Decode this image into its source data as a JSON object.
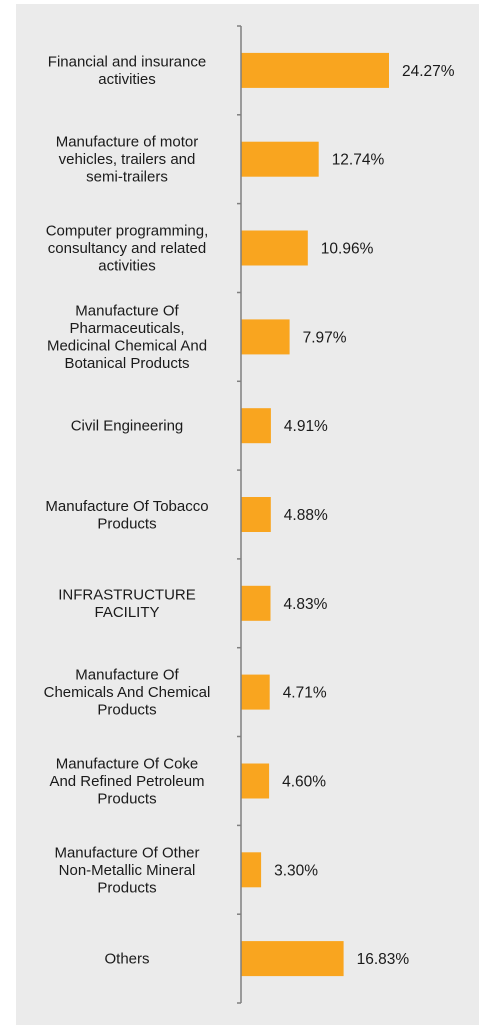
{
  "chart_data": {
    "type": "bar",
    "orientation": "horizontal",
    "categories": [
      [
        "Financial and insurance",
        "activities"
      ],
      [
        "Manufacture of motor",
        "vehicles, trailers and",
        "semi-trailers"
      ],
      [
        "Computer programming,",
        "consultancy and related",
        "activities"
      ],
      [
        "Manufacture Of",
        "Pharmaceuticals,",
        "Medicinal Chemical And",
        "Botanical Products"
      ],
      [
        "Civil Engineering"
      ],
      [
        "Manufacture Of Tobacco",
        "Products"
      ],
      [
        "INFRASTRUCTURE",
        "FACILITY"
      ],
      [
        "Manufacture Of",
        "Chemicals And Chemical",
        "Products"
      ],
      [
        "Manufacture Of Coke",
        "And Refined Petroleum",
        "Products"
      ],
      [
        "Manufacture Of Other",
        "Non-Metallic Mineral",
        "Products"
      ],
      [
        "Others"
      ]
    ],
    "values": [
      24.27,
      12.74,
      10.96,
      7.97,
      4.91,
      4.88,
      4.83,
      4.71,
      4.6,
      3.3,
      16.83
    ],
    "value_labels": [
      "24.27%",
      "12.74%",
      "10.96%",
      "7.97%",
      "4.91%",
      "4.88%",
      "4.83%",
      "4.71%",
      "4.60%",
      "3.30%",
      "16.83%"
    ],
    "title": "",
    "xlabel": "",
    "ylabel": "",
    "xlim": [
      0,
      24.27
    ],
    "grid": false,
    "legend": "none",
    "colors": {
      "bar": "#f9a51f",
      "axis": "#7f7f7f",
      "background": "#ebebeb",
      "text": "#1a1a1a"
    }
  }
}
